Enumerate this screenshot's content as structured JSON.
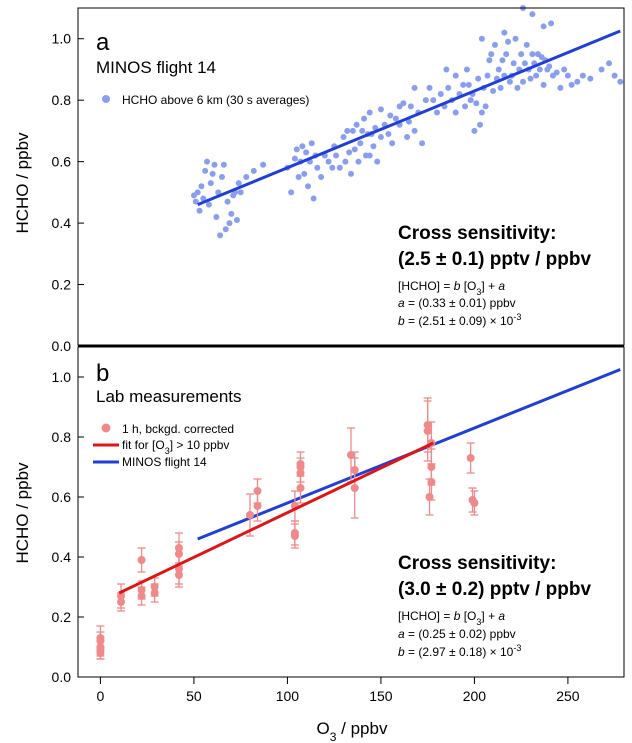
{
  "chart_data": [
    {
      "type": "scatter",
      "panel_letter": "a",
      "panel_title": "MINOS flight 14",
      "ylabel": "HCHO / ppbv",
      "xlim": [
        -12,
        280
      ],
      "ylim": [
        0,
        1.1
      ],
      "yticks": [
        "0.0",
        "0.2",
        "0.4",
        "0.6",
        "0.8",
        "1.0"
      ],
      "grid": false,
      "legend_position": "top-left",
      "legend": [
        {
          "label": "HCHO above 6 km (30 s averages)",
          "kind": "point",
          "color": "#8a9ef0"
        }
      ],
      "annotation_title_line1": "Cross sensitivity:",
      "annotation_title_line2": "(2.5 ± 0.1) pptv / ppbv",
      "equation": "[HCHO] = b [O3] + a",
      "param_a": "a = (0.33 ± 0.01) ppbv",
      "param_b": "b = (2.51 ± 0.09) × 10-3",
      "fit_line": {
        "name": "MINOS flight 14",
        "color": "#1f3fd8",
        "x": [
          52,
          278
        ],
        "y": [
          0.46,
          1.025
        ]
      },
      "points_color": "#8a9ef0",
      "points": [
        [
          50,
          0.49
        ],
        [
          51,
          0.47
        ],
        [
          52,
          0.5
        ],
        [
          53,
          0.44
        ],
        [
          54,
          0.52
        ],
        [
          55,
          0.48
        ],
        [
          56,
          0.57
        ],
        [
          57,
          0.6
        ],
        [
          58,
          0.46
        ],
        [
          59,
          0.53
        ],
        [
          60,
          0.56
        ],
        [
          61,
          0.59
        ],
        [
          62,
          0.42
        ],
        [
          63,
          0.5
        ],
        [
          64,
          0.36
        ],
        [
          65,
          0.55
        ],
        [
          66,
          0.59
        ],
        [
          67,
          0.38
        ],
        [
          68,
          0.47
        ],
        [
          69,
          0.4
        ],
        [
          70,
          0.43
        ],
        [
          71,
          0.49
        ],
        [
          72,
          0.5
        ],
        [
          73,
          0.41
        ],
        [
          74,
          0.53
        ],
        [
          75,
          0.5
        ],
        [
          78,
          0.55
        ],
        [
          82,
          0.57
        ],
        [
          87,
          0.59
        ],
        [
          100,
          0.58
        ],
        [
          102,
          0.5
        ],
        [
          104,
          0.61
        ],
        [
          105,
          0.64
        ],
        [
          106,
          0.55
        ],
        [
          107,
          0.6
        ],
        [
          108,
          0.65
        ],
        [
          109,
          0.56
        ],
        [
          110,
          0.63
        ],
        [
          111,
          0.52
        ],
        [
          112,
          0.6
        ],
        [
          113,
          0.66
        ],
        [
          114,
          0.48
        ],
        [
          115,
          0.62
        ],
        [
          116,
          0.58
        ],
        [
          118,
          0.55
        ],
        [
          120,
          0.62
        ],
        [
          122,
          0.6
        ],
        [
          124,
          0.58
        ],
        [
          125,
          0.65
        ],
        [
          126,
          0.62
        ],
        [
          128,
          0.58
        ],
        [
          130,
          0.68
        ],
        [
          131,
          0.6
        ],
        [
          132,
          0.7
        ],
        [
          133,
          0.63
        ],
        [
          134,
          0.56
        ],
        [
          135,
          0.7
        ],
        [
          136,
          0.64
        ],
        [
          137,
          0.72
        ],
        [
          138,
          0.6
        ],
        [
          139,
          0.66
        ],
        [
          140,
          0.7
        ],
        [
          141,
          0.74
        ],
        [
          142,
          0.62
        ],
        [
          143,
          0.69
        ],
        [
          144,
          0.62
        ],
        [
          145,
          0.69
        ],
        [
          146,
          0.65
        ],
        [
          147,
          0.71
        ],
        [
          148,
          0.6
        ],
        [
          150,
          0.68
        ],
        [
          152,
          0.72
        ],
        [
          154,
          0.69
        ],
        [
          155,
          0.75
        ],
        [
          156,
          0.66
        ],
        [
          158,
          0.74
        ],
        [
          160,
          0.72
        ],
        [
          162,
          0.79
        ],
        [
          164,
          0.68
        ],
        [
          165,
          0.73
        ],
        [
          166,
          0.78
        ],
        [
          168,
          0.7
        ],
        [
          170,
          0.76
        ],
        [
          172,
          0.66
        ],
        [
          174,
          0.8
        ],
        [
          176,
          0.84
        ],
        [
          178,
          0.8
        ],
        [
          180,
          0.76
        ],
        [
          182,
          0.82
        ],
        [
          184,
          0.78
        ],
        [
          186,
          0.84
        ],
        [
          188,
          0.8
        ],
        [
          190,
          0.76
        ],
        [
          192,
          0.82
        ],
        [
          194,
          0.85
        ],
        [
          195,
          0.78
        ],
        [
          196,
          0.9
        ],
        [
          197,
          0.85
        ],
        [
          198,
          0.8
        ],
        [
          199,
          0.82
        ],
        [
          200,
          0.7
        ],
        [
          201,
          0.79
        ],
        [
          202,
          0.87
        ],
        [
          203,
          0.72
        ],
        [
          204,
          0.76
        ],
        [
          205,
          0.84
        ],
        [
          206,
          0.78
        ],
        [
          207,
          0.88
        ],
        [
          208,
          0.93
        ],
        [
          209,
          0.95
        ],
        [
          210,
          0.83
        ],
        [
          211,
          0.98
        ],
        [
          212,
          0.87
        ],
        [
          213,
          0.9
        ],
        [
          214,
          0.84
        ],
        [
          215,
          0.93
        ],
        [
          216,
          0.88
        ],
        [
          217,
          0.95
        ],
        [
          218,
          0.99
        ],
        [
          219,
          0.86
        ],
        [
          220,
          0.88
        ],
        [
          221,
          0.92
        ],
        [
          222,
          1.0
        ],
        [
          223,
          0.84
        ],
        [
          224,
          0.9
        ],
        [
          225,
          0.95
        ],
        [
          226,
          0.86
        ],
        [
          227,
          0.92
        ],
        [
          228,
          0.98
        ],
        [
          229,
          0.9
        ],
        [
          230,
          0.87
        ],
        [
          231,
          0.95
        ],
        [
          232,
          0.92
        ],
        [
          233,
          0.88
        ],
        [
          234,
          0.95
        ],
        [
          235,
          0.9
        ],
        [
          236,
          0.94
        ],
        [
          237,
          0.85
        ],
        [
          238,
          0.93
        ],
        [
          239,
          0.9
        ],
        [
          240,
          0.91
        ],
        [
          242,
          0.88
        ],
        [
          244,
          0.89
        ],
        [
          246,
          0.84
        ],
        [
          248,
          0.9
        ],
        [
          250,
          0.88
        ],
        [
          252,
          0.85
        ],
        [
          255,
          0.86
        ],
        [
          258,
          0.88
        ],
        [
          262,
          0.87
        ],
        [
          268,
          0.9
        ],
        [
          272,
          0.92
        ],
        [
          275,
          0.88
        ],
        [
          278,
          0.86
        ],
        [
          226,
          1.1
        ],
        [
          231,
          1.08
        ],
        [
          237,
          1.04
        ],
        [
          241,
          1.05
        ],
        [
          204,
          1.0
        ],
        [
          216,
          1.02
        ],
        [
          185,
          0.9
        ],
        [
          190,
          0.88
        ],
        [
          160,
          0.78
        ],
        [
          168,
          0.84
        ],
        [
          150,
          0.77
        ],
        [
          144,
          0.76
        ]
      ]
    },
    {
      "type": "scatter",
      "panel_letter": "b",
      "panel_title": "Lab measurements",
      "xlabel_main": "O",
      "xlabel_sub": "3",
      "xlabel_rest": " / ppbv",
      "ylabel": "HCHO / ppbv",
      "xlim": [
        -12,
        280
      ],
      "ylim": [
        0,
        1.1
      ],
      "xticks": [
        "0",
        "50",
        "100",
        "150",
        "200",
        "250"
      ],
      "yticks": [
        "0.0",
        "0.2",
        "0.4",
        "0.6",
        "0.8",
        "1.0"
      ],
      "grid": false,
      "legend_position": "top-left",
      "legend": [
        {
          "label": "1 h, bckgd. corrected",
          "kind": "point",
          "color": "#f08a8a"
        },
        {
          "label_pre": "fit for [O",
          "label_sub": "3",
          "label_post": "] > 10 ppbv",
          "kind": "line",
          "color": "#e01414"
        },
        {
          "label": "MINOS flight 14",
          "kind": "line",
          "color": "#1f3fd8"
        }
      ],
      "annotation_title_line1": "Cross sensitivity:",
      "annotation_title_line2": "(3.0 ± 0.2) pptv / ppbv",
      "equation": "[HCHO] = b [O3] + a",
      "param_a": "a = (0.25 ± 0.02) ppbv",
      "param_b": "b = (2.97 ± 0.18) × 10-3",
      "fit_red": {
        "name": "fit for [O3] > 10 ppbv",
        "color": "#e01414",
        "x": [
          10,
          178
        ],
        "y": [
          0.28,
          0.78
        ]
      },
      "fit_blue": {
        "name": "MINOS flight 14",
        "color": "#1f3fd8",
        "x": [
          52,
          278
        ],
        "y": [
          0.46,
          1.025
        ]
      },
      "points_color": "#f08a8a",
      "points": [
        {
          "x": 0,
          "y": 0.13,
          "err": 0.04
        },
        {
          "x": 0,
          "y": 0.12,
          "err": 0.03
        },
        {
          "x": 0,
          "y": 0.1,
          "err": 0.03
        },
        {
          "x": 0,
          "y": 0.09,
          "err": 0.03
        },
        {
          "x": 0,
          "y": 0.08,
          "err": 0.02
        },
        {
          "x": 11,
          "y": 0.27,
          "err": 0.04
        },
        {
          "x": 11,
          "y": 0.25,
          "err": 0.03
        },
        {
          "x": 22,
          "y": 0.39,
          "err": 0.04
        },
        {
          "x": 22,
          "y": 0.29,
          "err": 0.03
        },
        {
          "x": 22,
          "y": 0.27,
          "err": 0.03
        },
        {
          "x": 29,
          "y": 0.3,
          "err": 0.03
        },
        {
          "x": 29,
          "y": 0.28,
          "err": 0.03
        },
        {
          "x": 42,
          "y": 0.43,
          "err": 0.05
        },
        {
          "x": 42,
          "y": 0.41,
          "err": 0.04
        },
        {
          "x": 42,
          "y": 0.36,
          "err": 0.05
        },
        {
          "x": 42,
          "y": 0.34,
          "err": 0.04
        },
        {
          "x": 80,
          "y": 0.54,
          "err": 0.07
        },
        {
          "x": 84,
          "y": 0.62,
          "err": 0.04
        },
        {
          "x": 84,
          "y": 0.57,
          "err": 0.05
        },
        {
          "x": 104,
          "y": 0.57,
          "err": 0.05
        },
        {
          "x": 104,
          "y": 0.48,
          "err": 0.04
        },
        {
          "x": 104,
          "y": 0.47,
          "err": 0.04
        },
        {
          "x": 107,
          "y": 0.71,
          "err": 0.04
        },
        {
          "x": 107,
          "y": 0.7,
          "err": 0.03
        },
        {
          "x": 107,
          "y": 0.68,
          "err": 0.03
        },
        {
          "x": 107,
          "y": 0.63,
          "err": 0.05
        },
        {
          "x": 134,
          "y": 0.74,
          "err": 0.09
        },
        {
          "x": 136,
          "y": 0.69,
          "err": 0.06
        },
        {
          "x": 136,
          "y": 0.63,
          "err": 0.1
        },
        {
          "x": 175,
          "y": 0.84,
          "err": 0.09
        },
        {
          "x": 175,
          "y": 0.82,
          "err": 0.1
        },
        {
          "x": 177,
          "y": 0.78,
          "err": 0.07
        },
        {
          "x": 177,
          "y": 0.7,
          "err": 0.06
        },
        {
          "x": 177,
          "y": 0.65,
          "err": 0.06
        },
        {
          "x": 176,
          "y": 0.6,
          "err": 0.06
        },
        {
          "x": 198,
          "y": 0.73,
          "err": 0.05
        },
        {
          "x": 199,
          "y": 0.59,
          "err": 0.04
        },
        {
          "x": 200,
          "y": 0.58,
          "err": 0.04
        }
      ]
    }
  ]
}
